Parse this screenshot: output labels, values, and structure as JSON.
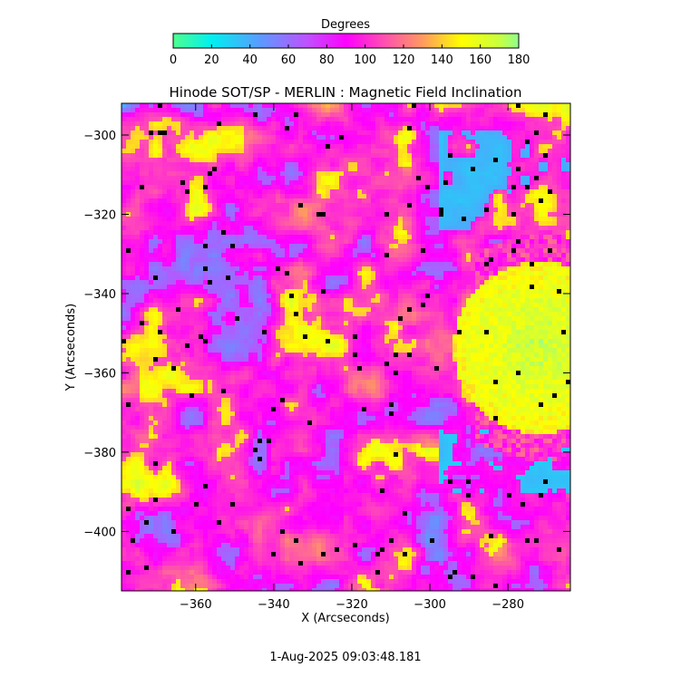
{
  "chart_data": {
    "type": "heatmap",
    "title": "Hinode SOT/SP - MERLIN : Magnetic Field Inclination",
    "xlabel": "X (Arcseconds)",
    "ylabel": "Y (Arcseconds)",
    "xlim": [
      -379,
      -264
    ],
    "ylim": [
      -415,
      -292
    ],
    "x_ticks": [
      -360,
      -340,
      -320,
      -300,
      -280
    ],
    "y_ticks": [
      -300,
      -320,
      -340,
      -360,
      -380,
      -400
    ],
    "colorbar": {
      "title": "Degrees",
      "range": [
        0,
        180
      ],
      "ticks": [
        0,
        20,
        40,
        60,
        80,
        100,
        120,
        140,
        160,
        180
      ],
      "stops": [
        {
          "value": 0,
          "color": "#4fff8f"
        },
        {
          "value": 20,
          "color": "#00f0f0"
        },
        {
          "value": 45,
          "color": "#5a9bff"
        },
        {
          "value": 70,
          "color": "#c050ff"
        },
        {
          "value": 90,
          "color": "#ff00ff"
        },
        {
          "value": 110,
          "color": "#ff50b0"
        },
        {
          "value": 130,
          "color": "#ff9a60"
        },
        {
          "value": 150,
          "color": "#ffff00"
        },
        {
          "value": 170,
          "color": "#c8ff40"
        },
        {
          "value": 180,
          "color": "#8fff8f"
        }
      ]
    },
    "grid": false,
    "timestamp": "1-Aug-2025 09:03:48.181"
  }
}
